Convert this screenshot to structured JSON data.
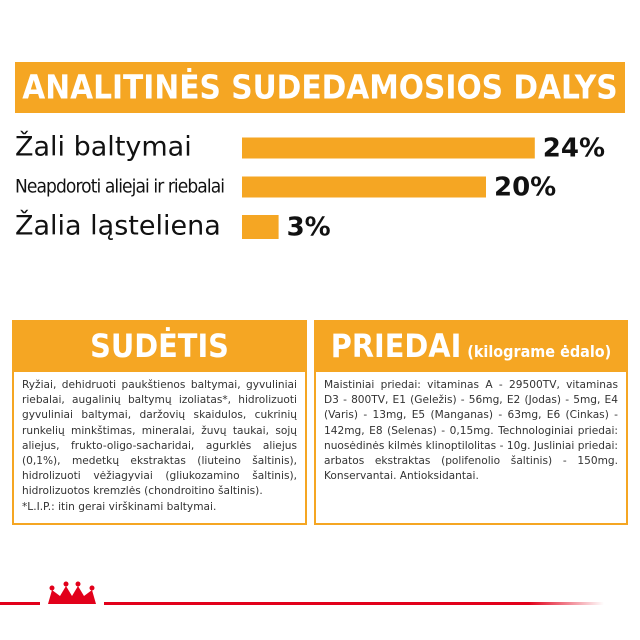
{
  "chart_data": {
    "type": "bar",
    "title": "ANALITINĖS SUDEDAMOSIOS DALYS",
    "categories": [
      "Žali baltymai",
      "Neapdoroti aliejai ir riebalai",
      "Žalia ląsteliena"
    ],
    "values": [
      24,
      20,
      3
    ],
    "value_labels": [
      "24%",
      "20%",
      "3%"
    ],
    "color": "#f5a623"
  },
  "sections": [
    {
      "title": "SUDĖTIS",
      "paragraphs": [
        "Ryžiai, dehidruoti paukštienos baltymai, gyvuliniai riebalai, augalinių baltymų izoliatas*, hidrolizuoti gyvuliniai baltymai, daržovių skaidulos, cukrinių runkelių minkštimas, mineralai, žuvų taukai, sojų aliejus, frukto-oligo-sacharidai, agurklės aliejus (0,1%), medetkų ekstraktas (liuteino šaltinis), hidrolizuoti vėžiagyviai (gliukozamino šaltinis), hidrolizuotos kremzlės (chondroitino šaltinis).",
        "*L.I.P.: itin gerai virškinami baltymai."
      ]
    },
    {
      "title": "PRIEDAI",
      "subtitle": "(kilograme ėdalo)",
      "paragraphs": [
        "Maistiniai priedai: vitaminas A - 29500TV, vitaminas D3 - 800TV, E1 (Geležis) - 56mg, E2 (Jodas) - 5mg, E4 (Varis) - 13mg, E5 (Manganas) - 63mg, E6 (Cinkas) - 142mg, E8 (Selenas) - 0,15mg. Technologiniai priedai: nuosėdinės kilmės klinoptilolitas - 10g. Jusliniai priedai: arbatos ekstraktas (polifenolio šaltinis) - 150mg. Konservantai. Antioksidantai."
      ]
    }
  ]
}
